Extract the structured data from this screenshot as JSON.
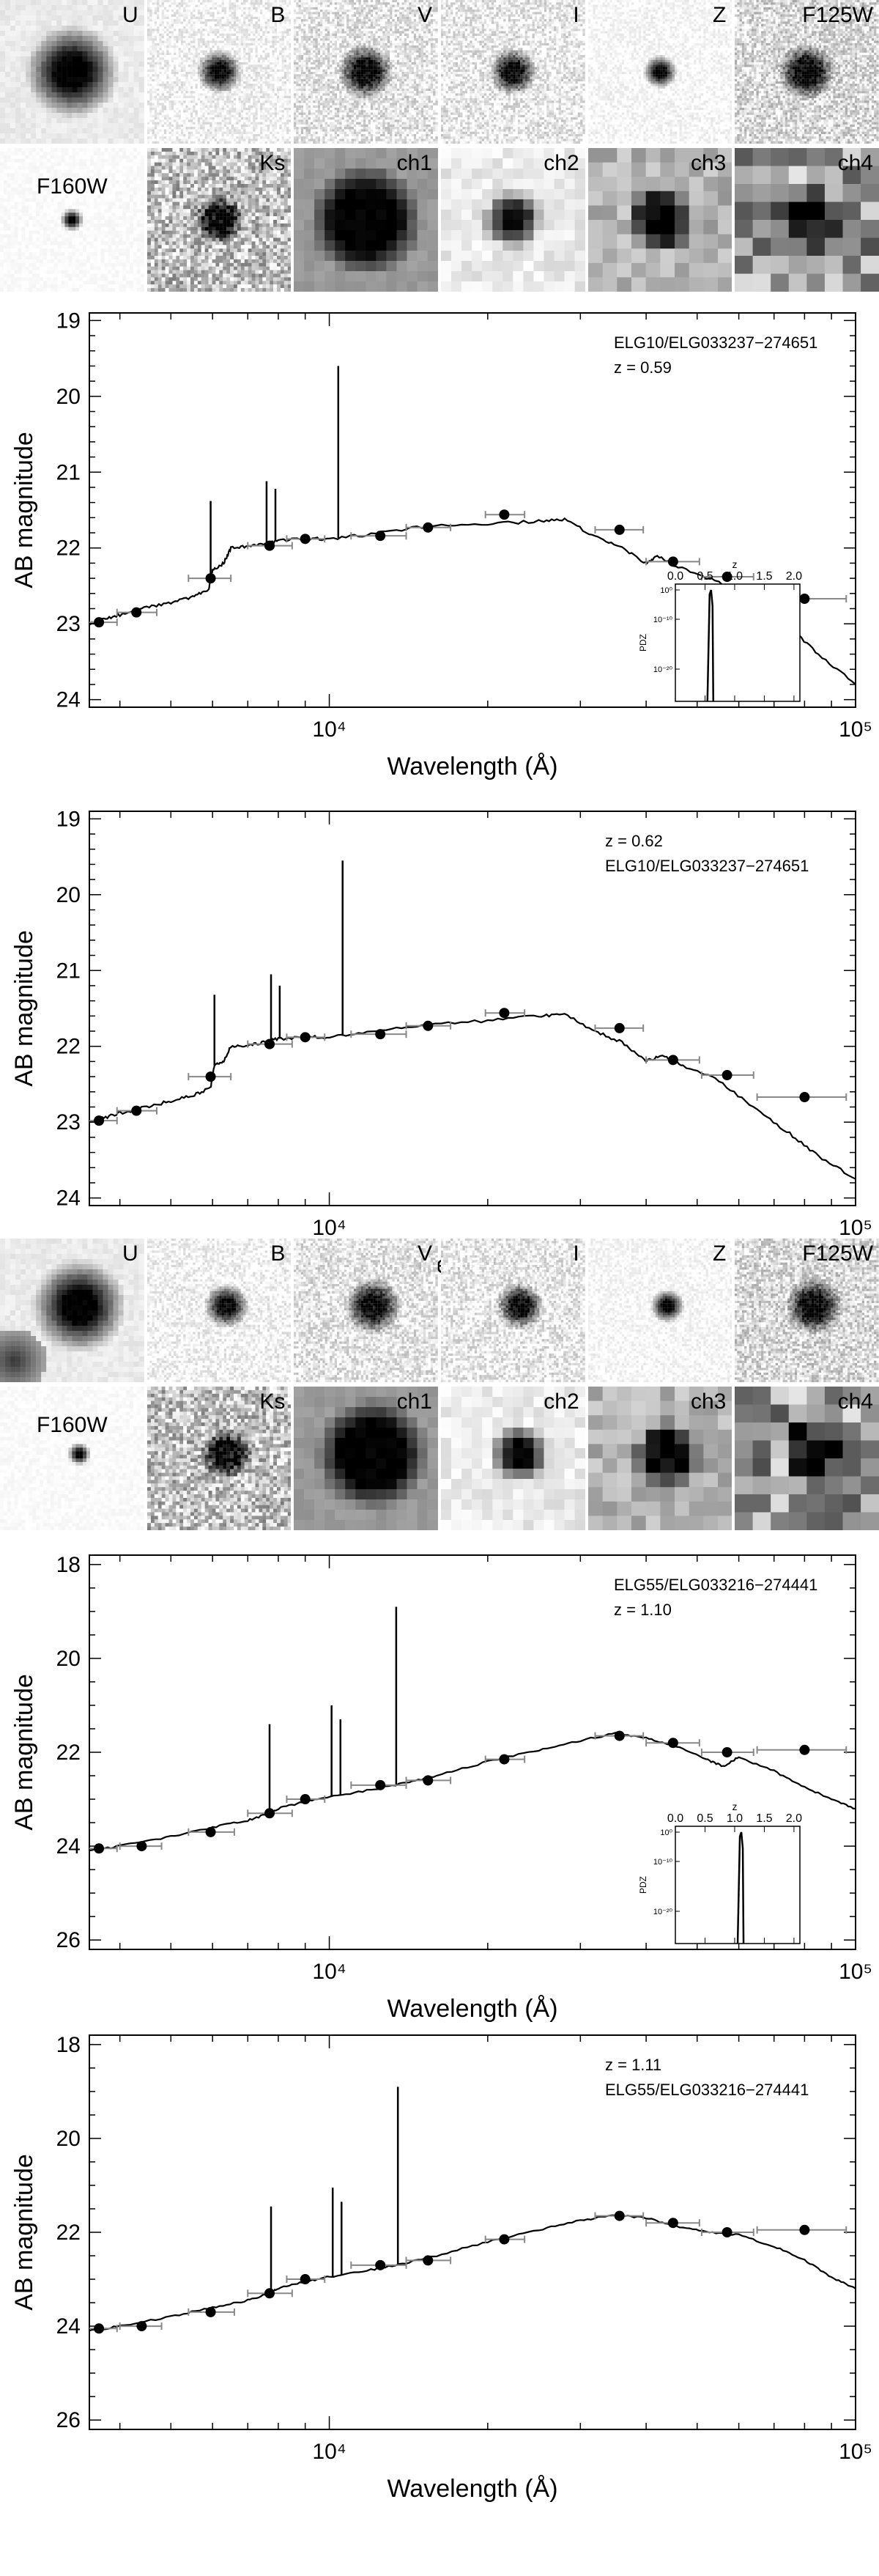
{
  "stamp_sets": [
    {
      "rows": [
        [
          "U",
          "B",
          "V",
          "I",
          "Z",
          "F125W"
        ],
        [
          "F160W",
          "Ks",
          "ch1",
          "ch2",
          "ch3",
          "ch4"
        ]
      ]
    },
    {
      "rows": [
        [
          "U",
          "B",
          "V",
          "I",
          "Z",
          "F125W"
        ],
        [
          "F160W",
          "Ks",
          "ch1",
          "ch2",
          "ch3",
          "ch4"
        ]
      ]
    }
  ],
  "chart_data": [
    {
      "type": "line",
      "id_label": "ELG10/ELG033237−274651",
      "z_label": "z =  0.59",
      "label_order": "id_first",
      "xlabel": "Wavelength (Å)",
      "ylabel": "AB magnitude",
      "xscale": "log",
      "xlim": [
        3500,
        100000
      ],
      "ylim": [
        24.1,
        18.9
      ],
      "yticks": [
        19,
        20,
        21,
        22,
        23,
        24
      ],
      "xtick_labels": [
        "10⁴",
        "10⁵"
      ],
      "xtick_values": [
        10000,
        100000
      ],
      "points": [
        {
          "x": 3650,
          "y": 22.98,
          "xerr": [
            3400,
            3950
          ]
        },
        {
          "x": 4300,
          "y": 22.85,
          "xerr": [
            3950,
            4700
          ]
        },
        {
          "x": 5950,
          "y": 22.4,
          "xerr": [
            5400,
            6500
          ]
        },
        {
          "x": 7700,
          "y": 21.97,
          "xerr": [
            7000,
            8500
          ]
        },
        {
          "x": 9000,
          "y": 21.88,
          "xerr": [
            8300,
            9800
          ]
        },
        {
          "x": 12500,
          "y": 21.84,
          "xerr": [
            11000,
            14000
          ]
        },
        {
          "x": 15400,
          "y": 21.73,
          "xerr": [
            14000,
            17000
          ]
        },
        {
          "x": 21500,
          "y": 21.56,
          "xerr": [
            19800,
            23500
          ]
        },
        {
          "x": 35600,
          "y": 21.76,
          "xerr": [
            32000,
            39500
          ]
        },
        {
          "x": 45000,
          "y": 22.18,
          "xerr": [
            40000,
            50500
          ]
        },
        {
          "x": 57000,
          "y": 22.38,
          "xerr": [
            51000,
            64000
          ]
        },
        {
          "x": 80000,
          "y": 22.67,
          "xerr": [
            65000,
            96000
          ]
        }
      ],
      "curve": [
        [
          3500,
          23.0
        ],
        [
          3700,
          22.95
        ],
        [
          4000,
          22.88
        ],
        [
          4500,
          22.78
        ],
        [
          5000,
          22.72
        ],
        [
          5500,
          22.65
        ],
        [
          5900,
          22.55
        ],
        [
          6000,
          22.3
        ],
        [
          6300,
          22.2
        ],
        [
          6500,
          22.0
        ],
        [
          7000,
          21.98
        ],
        [
          7500,
          21.95
        ],
        [
          8000,
          21.9
        ],
        [
          9000,
          21.88
        ],
        [
          10000,
          21.88
        ],
        [
          12000,
          21.82
        ],
        [
          15000,
          21.72
        ],
        [
          20000,
          21.68
        ],
        [
          25000,
          21.65
        ],
        [
          28000,
          21.62
        ],
        [
          32000,
          21.85
        ],
        [
          36000,
          22.0
        ],
        [
          40000,
          22.2
        ],
        [
          42000,
          22.1
        ],
        [
          46000,
          22.25
        ],
        [
          55000,
          22.45
        ],
        [
          65000,
          22.75
        ],
        [
          75000,
          23.05
        ],
        [
          85000,
          23.4
        ],
        [
          100000,
          23.8
        ]
      ],
      "lines": [
        {
          "x": 5950,
          "y": 21.38
        },
        {
          "x": 7600,
          "y": 21.12
        },
        {
          "x": 7900,
          "y": 21.22
        },
        {
          "x": 10400,
          "y": 19.6
        }
      ],
      "inset": {
        "xlabel": "z",
        "ylabel": "PDZ",
        "xlim": [
          0.0,
          2.1
        ],
        "xticks": [
          "0.0",
          "0.5",
          "1.0",
          "1.5",
          "2.0"
        ],
        "yticks": [
          "10⁰",
          "10⁻¹⁰",
          "10⁻²⁰"
        ],
        "peak_z": 0.59
      }
    },
    {
      "type": "line",
      "id_label": "ELG10/ELG033237−274651",
      "z_label": "z =  0.62",
      "label_order": "z_first",
      "xlabel": "Wavelength (Å)",
      "ylabel": "AB magnitude",
      "xscale": "log",
      "xlim": [
        3500,
        100000
      ],
      "ylim": [
        24.1,
        18.9
      ],
      "yticks": [
        19,
        20,
        21,
        22,
        23,
        24
      ],
      "xtick_labels": [
        "10⁴",
        "10⁵"
      ],
      "xtick_values": [
        10000,
        100000
      ],
      "points": [
        {
          "x": 3650,
          "y": 22.98,
          "xerr": [
            3400,
            3950
          ]
        },
        {
          "x": 4300,
          "y": 22.85,
          "xerr": [
            3950,
            4700
          ]
        },
        {
          "x": 5950,
          "y": 22.4,
          "xerr": [
            5400,
            6500
          ]
        },
        {
          "x": 7700,
          "y": 21.97,
          "xerr": [
            7000,
            8500
          ]
        },
        {
          "x": 9000,
          "y": 21.88,
          "xerr": [
            8300,
            9800
          ]
        },
        {
          "x": 12500,
          "y": 21.84,
          "xerr": [
            11000,
            14000
          ]
        },
        {
          "x": 15400,
          "y": 21.73,
          "xerr": [
            14000,
            17000
          ]
        },
        {
          "x": 21500,
          "y": 21.56,
          "xerr": [
            19800,
            23500
          ]
        },
        {
          "x": 35600,
          "y": 21.76,
          "xerr": [
            32000,
            39500
          ]
        },
        {
          "x": 45000,
          "y": 22.18,
          "xerr": [
            40000,
            50500
          ]
        },
        {
          "x": 57000,
          "y": 22.38,
          "xerr": [
            51000,
            64000
          ]
        },
        {
          "x": 80000,
          "y": 22.67,
          "xerr": [
            65000,
            96000
          ]
        }
      ],
      "curve": [
        [
          3500,
          23.0
        ],
        [
          3700,
          22.95
        ],
        [
          4000,
          22.88
        ],
        [
          4500,
          22.8
        ],
        [
          5000,
          22.72
        ],
        [
          5500,
          22.65
        ],
        [
          5950,
          22.55
        ],
        [
          6050,
          22.25
        ],
        [
          6300,
          22.2
        ],
        [
          6500,
          22.0
        ],
        [
          7000,
          21.98
        ],
        [
          7500,
          21.95
        ],
        [
          8000,
          21.9
        ],
        [
          9000,
          21.88
        ],
        [
          10000,
          21.88
        ],
        [
          12000,
          21.82
        ],
        [
          15000,
          21.72
        ],
        [
          20000,
          21.66
        ],
        [
          25000,
          21.6
        ],
        [
          28000,
          21.58
        ],
        [
          32000,
          21.8
        ],
        [
          36000,
          21.95
        ],
        [
          40000,
          22.2
        ],
        [
          43000,
          22.12
        ],
        [
          47000,
          22.25
        ],
        [
          55000,
          22.45
        ],
        [
          65000,
          22.85
        ],
        [
          75000,
          23.15
        ],
        [
          85000,
          23.45
        ],
        [
          100000,
          23.75
        ]
      ],
      "lines": [
        {
          "x": 6050,
          "y": 21.32
        },
        {
          "x": 7750,
          "y": 21.05
        },
        {
          "x": 8050,
          "y": 21.2
        },
        {
          "x": 10600,
          "y": 19.55
        }
      ]
    },
    {
      "type": "line",
      "id_label": "ELG55/ELG033216−274441",
      "z_label": "z =  1.10",
      "label_order": "id_first",
      "xlabel": "Wavelength (Å)",
      "ylabel": "AB magnitude",
      "xscale": "log",
      "xlim": [
        3500,
        100000
      ],
      "ylim": [
        26.2,
        17.8
      ],
      "yticks": [
        18,
        20,
        22,
        24,
        26
      ],
      "xtick_labels": [
        "10⁴",
        "10⁵"
      ],
      "xtick_values": [
        10000,
        100000
      ],
      "points": [
        {
          "x": 3650,
          "y": 24.05,
          "xerr": [
            3400,
            3950
          ]
        },
        {
          "x": 4400,
          "y": 24.0,
          "xerr": [
            4000,
            4800
          ]
        },
        {
          "x": 5950,
          "y": 23.7,
          "xerr": [
            5400,
            6600
          ]
        },
        {
          "x": 7700,
          "y": 23.3,
          "xerr": [
            7000,
            8500
          ]
        },
        {
          "x": 9000,
          "y": 23.0,
          "xerr": [
            8300,
            9800
          ]
        },
        {
          "x": 12500,
          "y": 22.7,
          "xerr": [
            11000,
            14000
          ]
        },
        {
          "x": 15400,
          "y": 22.6,
          "xerr": [
            14000,
            17000
          ]
        },
        {
          "x": 21500,
          "y": 22.15,
          "xerr": [
            19800,
            23500
          ]
        },
        {
          "x": 35600,
          "y": 21.65,
          "xerr": [
            32000,
            39500
          ]
        },
        {
          "x": 45000,
          "y": 21.8,
          "xerr": [
            40000,
            50500
          ]
        },
        {
          "x": 57000,
          "y": 22.0,
          "xerr": [
            51000,
            64000
          ]
        },
        {
          "x": 80000,
          "y": 21.95,
          "xerr": [
            65000,
            96000
          ]
        }
      ],
      "curve": [
        [
          3500,
          24.1
        ],
        [
          4000,
          24.0
        ],
        [
          5000,
          23.8
        ],
        [
          6000,
          23.6
        ],
        [
          7000,
          23.45
        ],
        [
          7700,
          23.3
        ],
        [
          8000,
          23.2
        ],
        [
          9000,
          23.05
        ],
        [
          10000,
          22.95
        ],
        [
          12000,
          22.8
        ],
        [
          14000,
          22.65
        ],
        [
          16000,
          22.5
        ],
        [
          20000,
          22.2
        ],
        [
          25000,
          21.95
        ],
        [
          30000,
          21.75
        ],
        [
          35000,
          21.6
        ],
        [
          40000,
          21.7
        ],
        [
          45000,
          21.85
        ],
        [
          52000,
          22.15
        ],
        [
          56000,
          22.3
        ],
        [
          60000,
          22.1
        ],
        [
          70000,
          22.4
        ],
        [
          80000,
          22.75
        ],
        [
          90000,
          23.0
        ],
        [
          100000,
          23.2
        ]
      ],
      "lines": [
        {
          "x": 7700,
          "y": 21.4
        },
        {
          "x": 10100,
          "y": 21.0
        },
        {
          "x": 10500,
          "y": 21.3
        },
        {
          "x": 13400,
          "y": 18.9
        }
      ],
      "inset": {
        "xlabel": "z",
        "ylabel": "PDZ",
        "xlim": [
          0.0,
          2.1
        ],
        "xticks": [
          "0.0",
          "0.5",
          "1.0",
          "1.5",
          "2.0"
        ],
        "yticks": [
          "10⁰",
          "10⁻¹⁰",
          "10⁻²⁰"
        ],
        "peak_z": 1.1
      }
    },
    {
      "type": "line",
      "id_label": "ELG55/ELG033216−274441",
      "z_label": "z =  1.11",
      "label_order": "z_first",
      "xlabel": "Wavelength (Å)",
      "ylabel": "AB magnitude",
      "xscale": "log",
      "xlim": [
        3500,
        100000
      ],
      "ylim": [
        26.2,
        17.8
      ],
      "yticks": [
        18,
        20,
        22,
        24,
        26
      ],
      "xtick_labels": [
        "10⁴",
        "10⁵"
      ],
      "xtick_values": [
        10000,
        100000
      ],
      "points": [
        {
          "x": 3650,
          "y": 24.05,
          "xerr": [
            3400,
            3950
          ]
        },
        {
          "x": 4400,
          "y": 24.0,
          "xerr": [
            4000,
            4800
          ]
        },
        {
          "x": 5950,
          "y": 23.7,
          "xerr": [
            5400,
            6600
          ]
        },
        {
          "x": 7700,
          "y": 23.3,
          "xerr": [
            7000,
            8500
          ]
        },
        {
          "x": 9000,
          "y": 23.0,
          "xerr": [
            8300,
            9800
          ]
        },
        {
          "x": 12500,
          "y": 22.7,
          "xerr": [
            11000,
            14000
          ]
        },
        {
          "x": 15400,
          "y": 22.6,
          "xerr": [
            14000,
            17000
          ]
        },
        {
          "x": 21500,
          "y": 22.15,
          "xerr": [
            19800,
            23500
          ]
        },
        {
          "x": 35600,
          "y": 21.65,
          "xerr": [
            32000,
            39500
          ]
        },
        {
          "x": 45000,
          "y": 21.8,
          "xerr": [
            40000,
            50500
          ]
        },
        {
          "x": 57000,
          "y": 22.0,
          "xerr": [
            51000,
            64000
          ]
        },
        {
          "x": 80000,
          "y": 21.95,
          "xerr": [
            65000,
            96000
          ]
        }
      ],
      "curve": [
        [
          3500,
          24.1
        ],
        [
          4000,
          24.0
        ],
        [
          5000,
          23.8
        ],
        [
          6000,
          23.6
        ],
        [
          7000,
          23.45
        ],
        [
          7700,
          23.3
        ],
        [
          8000,
          23.2
        ],
        [
          9000,
          23.05
        ],
        [
          10000,
          22.95
        ],
        [
          12000,
          22.8
        ],
        [
          14000,
          22.65
        ],
        [
          16000,
          22.5
        ],
        [
          20000,
          22.2
        ],
        [
          25000,
          21.95
        ],
        [
          30000,
          21.75
        ],
        [
          35000,
          21.62
        ],
        [
          40000,
          21.7
        ],
        [
          45000,
          21.85
        ],
        [
          52000,
          22.0
        ],
        [
          60000,
          22.05
        ],
        [
          70000,
          22.3
        ],
        [
          80000,
          22.6
        ],
        [
          90000,
          22.95
        ],
        [
          100000,
          23.2
        ]
      ],
      "lines": [
        {
          "x": 7750,
          "y": 21.45
        },
        {
          "x": 10150,
          "y": 21.05
        },
        {
          "x": 10550,
          "y": 21.35
        },
        {
          "x": 13500,
          "y": 18.9
        }
      ]
    }
  ]
}
